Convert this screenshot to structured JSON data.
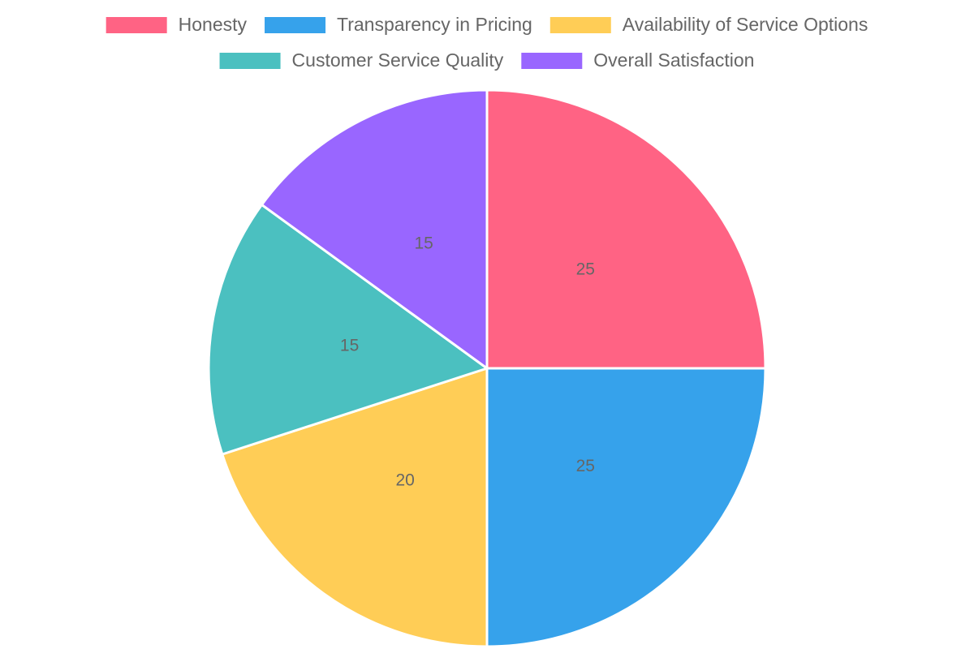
{
  "chart_data": {
    "type": "pie",
    "categories": [
      "Honesty",
      "Transparency in Pricing",
      "Availability of Service Options",
      "Customer Service Quality",
      "Overall Satisfaction"
    ],
    "values": [
      25,
      25,
      20,
      15,
      15
    ],
    "colors": [
      "#ff6384",
      "#36a2eb",
      "#ffcd56",
      "#4bc0c0",
      "#9966ff"
    ],
    "legend": "top"
  }
}
